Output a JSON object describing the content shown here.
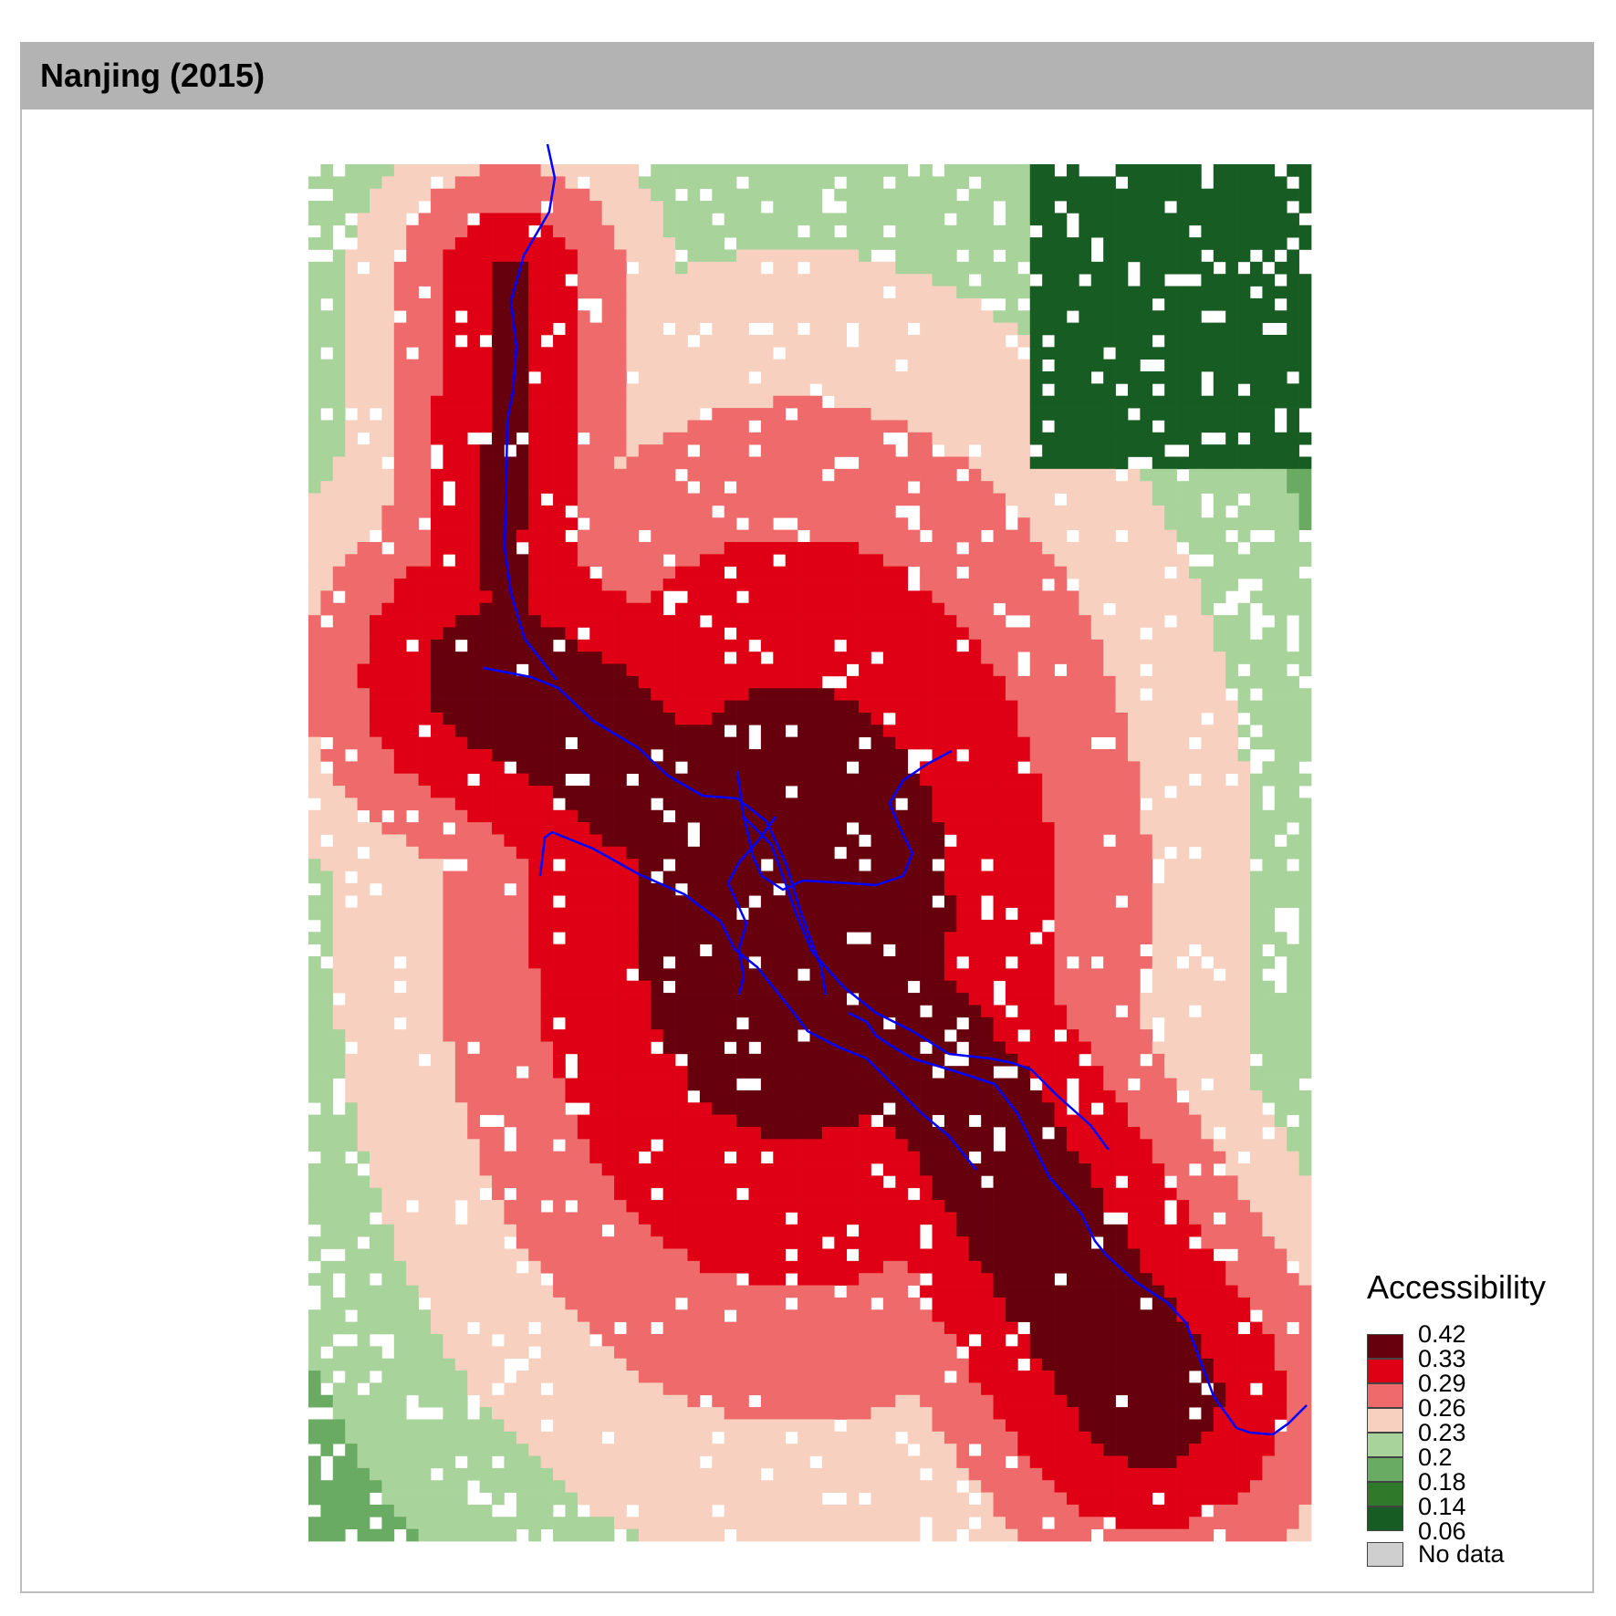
{
  "panel": {
    "title": "Nanjing (2015)"
  },
  "legend": {
    "title": "Accessibility",
    "breaks": [
      "0.42",
      "0.33",
      "0.29",
      "0.26",
      "0.23",
      "0.2",
      "0.18",
      "0.14",
      "0.06"
    ],
    "classes": [
      {
        "color": "#67000d"
      },
      {
        "color": "#e00015"
      },
      {
        "color": "#ef6b6b"
      },
      {
        "color": "#f8d0c0"
      },
      {
        "color": "#a8d39a"
      },
      {
        "color": "#6aab63"
      },
      {
        "color": "#2f7a2a"
      },
      {
        "color": "#175c23"
      }
    ],
    "no_data": {
      "label": "No data",
      "color": "#cfcfcf"
    }
  },
  "map": {
    "rail_color": "#0000ff",
    "grid_columns": 82,
    "grid_rows": 113
  }
}
